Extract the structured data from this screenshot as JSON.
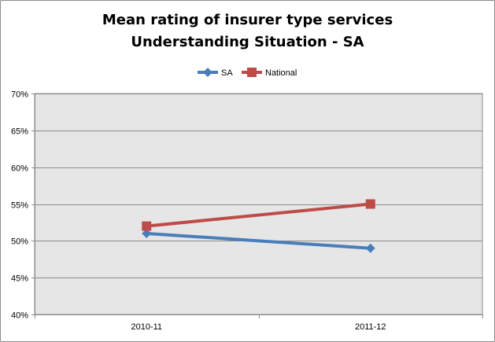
{
  "chart_data": {
    "type": "line",
    "title": "Mean rating of insurer type services",
    "subtitle": "Understanding Situation - SA",
    "categories": [
      "2010-11",
      "2011-12"
    ],
    "series": [
      {
        "name": "SA",
        "values": [
          51,
          49
        ],
        "color": "#4a7ebb",
        "marker": "diamond"
      },
      {
        "name": "National",
        "values": [
          52,
          55
        ],
        "color": "#be4b48",
        "marker": "square"
      }
    ],
    "ylim": [
      40,
      70
    ],
    "yticks": [
      "40%",
      "45%",
      "50%",
      "55%",
      "60%",
      "65%",
      "70%"
    ],
    "legend": "top",
    "grid": true,
    "plot_background": "#e6e6e6",
    "gridline_color": "#8c8c8c"
  }
}
